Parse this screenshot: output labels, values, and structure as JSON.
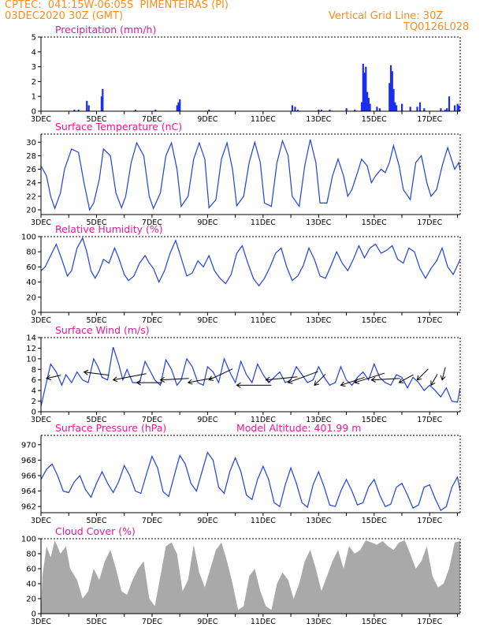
{
  "header": {
    "line1_left": "CPTEC:  041:15W-06:05S  PIMENTEIRAS (PI)",
    "line2_left": "03DEC2020 30Z (GMT)",
    "line2_right": "Vertical Grid Line: 30Z",
    "line3_right": "TQ0126L028"
  },
  "colors": {
    "header": "#ff8c1a",
    "title": "#e8179a",
    "line": "#1f3fe0",
    "bar": "#1a2ef0",
    "cloud": "#a9a9a9"
  },
  "x_axis": {
    "ticks": [
      "3DEC",
      "5DEC",
      "7DEC",
      "9DEC",
      "11DEC",
      "13DEC",
      "15DEC",
      "17DEC"
    ],
    "range_days": [
      3,
      18.1
    ]
  },
  "chart_data": [
    {
      "type": "bar",
      "title": "Precipitation (mm/h)",
      "ylim": [
        0,
        5
      ],
      "yticks": [
        0,
        1,
        2,
        3,
        4,
        5
      ],
      "x": [
        4.2,
        4.35,
        4.65,
        4.72,
        5.18,
        5.22,
        6.4,
        7.12,
        7.9,
        7.95,
        8.0,
        9.05,
        12.05,
        12.15,
        12.25,
        13.0,
        13.1,
        13.4,
        14.0,
        14.3,
        14.55,
        14.6,
        14.65,
        14.7,
        14.75,
        14.8,
        14.85,
        15.1,
        15.2,
        15.55,
        15.6,
        15.65,
        15.7,
        15.75,
        15.8,
        16.0,
        16.3,
        16.55,
        16.65,
        16.8,
        17.4,
        17.55,
        17.62,
        17.7,
        17.9,
        18.0,
        18.05
      ],
      "values": [
        0.1,
        0.1,
        0.7,
        0.4,
        1.0,
        1.5,
        0.1,
        0.1,
        0.4,
        0.6,
        0.8,
        0.1,
        0.4,
        0.3,
        0.1,
        0.1,
        0.1,
        0.1,
        0.2,
        0.1,
        0.6,
        3.2,
        2.6,
        3.0,
        1.3,
        0.9,
        0.5,
        0.3,
        0.2,
        1.9,
        3.1,
        2.7,
        1.5,
        0.6,
        0.4,
        0.5,
        0.3,
        0.3,
        0.6,
        0.2,
        0.2,
        0.1,
        0.2,
        1.0,
        0.4,
        0.5,
        0.4
      ]
    },
    {
      "type": "line",
      "title": "Surface Temperature (nC)",
      "ylim": [
        19.3,
        31.2
      ],
      "yticks": [
        20,
        22,
        24,
        26,
        28,
        30
      ],
      "x": [
        3.0,
        3.2,
        3.35,
        3.5,
        3.7,
        3.85,
        4.1,
        4.35,
        4.55,
        4.75,
        4.9,
        5.1,
        5.25,
        5.5,
        5.7,
        5.9,
        6.05,
        6.25,
        6.45,
        6.7,
        6.9,
        7.05,
        7.3,
        7.5,
        7.7,
        7.9,
        8.05,
        8.3,
        8.5,
        8.7,
        8.9,
        9.05,
        9.3,
        9.5,
        9.7,
        9.9,
        10.05,
        10.3,
        10.5,
        10.7,
        10.9,
        11.05,
        11.3,
        11.5,
        11.7,
        11.9,
        12.05,
        12.3,
        12.5,
        12.7,
        12.9,
        13.05,
        13.3,
        13.5,
        13.7,
        13.9,
        14.05,
        14.2,
        14.4,
        14.55,
        14.75,
        14.9,
        15.05,
        15.25,
        15.4,
        15.55,
        15.7,
        15.9,
        16.05,
        16.3,
        16.5,
        16.7,
        16.9,
        17.05,
        17.25,
        17.45,
        17.65,
        17.9,
        18.05,
        18.1
      ],
      "values": [
        26.5,
        25.0,
        22.0,
        20.2,
        22.5,
        26.0,
        29.0,
        28.5,
        24.0,
        20.0,
        21.0,
        24.5,
        29.0,
        28.0,
        22.5,
        20.3,
        22.0,
        27.0,
        29.9,
        28.0,
        22.0,
        20.2,
        22.5,
        28.0,
        29.9,
        26.0,
        20.5,
        22.0,
        27.5,
        29.9,
        27.5,
        20.3,
        21.5,
        27.5,
        29.9,
        26.0,
        20.6,
        22.0,
        27.0,
        30.0,
        27.0,
        21.0,
        20.5,
        27.0,
        30.2,
        28.0,
        22.0,
        20.5,
        26.5,
        30.4,
        27.0,
        21.0,
        21.0,
        25.0,
        27.5,
        25.0,
        22.0,
        23.0,
        25.5,
        27.5,
        26.5,
        24.0,
        25.0,
        26.0,
        25.5,
        27.0,
        29.5,
        26.5,
        23.0,
        21.5,
        27.0,
        28.0,
        24.0,
        22.0,
        23.0,
        26.5,
        29.2,
        26.0,
        27.0,
        25.8
      ]
    },
    {
      "type": "line",
      "title": "Relative Humidity (%)",
      "ylim": [
        0,
        100
      ],
      "yticks": [
        0,
        20,
        40,
        60,
        80,
        100
      ],
      "x": [
        3.0,
        3.15,
        3.35,
        3.55,
        3.75,
        3.95,
        4.1,
        4.3,
        4.5,
        4.65,
        4.8,
        4.95,
        5.1,
        5.25,
        5.45,
        5.65,
        5.8,
        6.0,
        6.15,
        6.35,
        6.55,
        6.75,
        6.9,
        7.05,
        7.25,
        7.45,
        7.65,
        7.85,
        8.05,
        8.25,
        8.45,
        8.65,
        8.85,
        9.05,
        9.25,
        9.45,
        9.65,
        9.85,
        10.05,
        10.25,
        10.45,
        10.65,
        10.85,
        11.05,
        11.25,
        11.45,
        11.65,
        11.85,
        12.05,
        12.25,
        12.45,
        12.65,
        12.85,
        13.05,
        13.25,
        13.45,
        13.65,
        13.85,
        14.05,
        14.25,
        14.45,
        14.65,
        14.85,
        15.05,
        15.25,
        15.45,
        15.65,
        15.85,
        16.05,
        16.25,
        16.45,
        16.65,
        16.85,
        17.05,
        17.25,
        17.45,
        17.65,
        17.85,
        18.1
      ],
      "values": [
        55,
        60,
        75,
        90,
        70,
        48,
        55,
        85,
        98,
        80,
        55,
        45,
        55,
        70,
        65,
        85,
        72,
        50,
        42,
        48,
        65,
        75,
        65,
        58,
        40,
        55,
        78,
        95,
        72,
        48,
        52,
        68,
        60,
        75,
        55,
        45,
        38,
        50,
        78,
        88,
        65,
        45,
        35,
        45,
        60,
        78,
        85,
        60,
        42,
        48,
        62,
        85,
        70,
        48,
        45,
        62,
        80,
        65,
        55,
        70,
        88,
        72,
        85,
        90,
        78,
        82,
        88,
        70,
        65,
        85,
        80,
        58,
        45,
        58,
        68,
        85,
        60,
        50,
        70
      ]
    },
    {
      "type": "line",
      "title": "Surface Wind (m/s)",
      "ylim": [
        0,
        14
      ],
      "yticks": [
        0,
        2,
        4,
        6,
        8,
        10,
        12,
        14
      ],
      "x": [
        3.0,
        3.15,
        3.35,
        3.55,
        3.75,
        3.9,
        4.1,
        4.3,
        4.5,
        4.7,
        4.9,
        5.05,
        5.2,
        5.4,
        5.6,
        5.8,
        5.95,
        6.1,
        6.3,
        6.55,
        6.75,
        6.95,
        7.1,
        7.3,
        7.5,
        7.7,
        7.9,
        8.05,
        8.25,
        8.45,
        8.65,
        8.85,
        9.0,
        9.2,
        9.4,
        9.6,
        9.8,
        10.0,
        10.2,
        10.4,
        10.6,
        10.8,
        11.0,
        11.2,
        11.4,
        11.6,
        11.8,
        12.0,
        12.2,
        12.4,
        12.6,
        12.8,
        13.0,
        13.2,
        13.4,
        13.6,
        13.8,
        14.0,
        14.2,
        14.4,
        14.6,
        14.8,
        15.0,
        15.2,
        15.4,
        15.6,
        15.8,
        16.0,
        16.2,
        16.4,
        16.6,
        16.8,
        17.0,
        17.2,
        17.4,
        17.6,
        17.8,
        18.0,
        18.1
      ],
      "values": [
        1.0,
        4.5,
        9.0,
        7.5,
        5.0,
        7.0,
        5.5,
        7.5,
        6.0,
        5.5,
        10.0,
        8.5,
        6.5,
        6.0,
        12.2,
        9.0,
        6.0,
        8.0,
        5.5,
        5.5,
        9.5,
        7.5,
        6.0,
        5.0,
        9.8,
        8.0,
        5.0,
        6.0,
        10.0,
        8.5,
        5.5,
        5.0,
        8.5,
        7.5,
        5.5,
        10.0,
        7.5,
        5.5,
        9.5,
        7.0,
        5.5,
        9.0,
        7.0,
        5.5,
        6.5,
        7.5,
        5.5,
        6.0,
        8.5,
        7.0,
        5.5,
        6.0,
        8.5,
        6.5,
        5.0,
        5.5,
        8.5,
        6.0,
        5.0,
        6.5,
        7.5,
        6.0,
        9.0,
        6.5,
        5.5,
        5.0,
        7.0,
        6.5,
        4.5,
        6.5,
        5.5,
        4.0,
        5.0,
        4.0,
        2.8,
        4.5,
        2.0,
        1.8,
        4.5
      ]
    },
    {
      "type": "line",
      "title": "Surface Pressure (hPa)",
      "subtitle": "Model Altitude: 401.99 m",
      "ylim": [
        961.2,
        971.2
      ],
      "yticks": [
        962,
        964,
        966,
        968,
        970
      ],
      "x": [
        3.0,
        3.2,
        3.4,
        3.6,
        3.8,
        4.0,
        4.2,
        4.4,
        4.6,
        4.8,
        5.0,
        5.2,
        5.4,
        5.6,
        5.8,
        6.0,
        6.2,
        6.4,
        6.6,
        6.8,
        7.0,
        7.2,
        7.4,
        7.6,
        7.8,
        8.0,
        8.2,
        8.4,
        8.6,
        8.8,
        9.0,
        9.2,
        9.4,
        9.6,
        9.8,
        10.0,
        10.2,
        10.4,
        10.6,
        10.8,
        11.0,
        11.2,
        11.4,
        11.6,
        11.8,
        12.0,
        12.2,
        12.4,
        12.6,
        12.8,
        13.0,
        13.2,
        13.4,
        13.6,
        13.8,
        14.0,
        14.2,
        14.4,
        14.6,
        14.8,
        15.0,
        15.2,
        15.4,
        15.6,
        15.8,
        16.0,
        16.2,
        16.4,
        16.6,
        16.8,
        17.0,
        17.2,
        17.4,
        17.6,
        17.8,
        18.0,
        18.1
      ],
      "values": [
        965.5,
        966.8,
        967.5,
        966.0,
        964.0,
        963.8,
        965.2,
        966.0,
        964.2,
        963.2,
        965.0,
        966.5,
        965.0,
        963.8,
        965.2,
        967.3,
        966.0,
        964.0,
        963.7,
        966.2,
        968.5,
        967.0,
        963.9,
        963.3,
        966.0,
        968.6,
        967.5,
        965.0,
        964.0,
        966.5,
        969.0,
        968.0,
        964.5,
        963.7,
        966.5,
        968.3,
        966.5,
        963.5,
        962.9,
        965.5,
        967.2,
        965.5,
        962.5,
        962.0,
        964.8,
        967.0,
        965.0,
        962.5,
        961.9,
        964.8,
        966.5,
        964.5,
        962.2,
        962.0,
        964.0,
        965.5,
        964.0,
        962.2,
        962.5,
        964.5,
        965.5,
        963.5,
        962.0,
        962.3,
        964.5,
        965.0,
        963.5,
        961.8,
        962.2,
        964.5,
        964.8,
        963.0,
        961.5,
        962.0,
        964.5,
        965.8,
        964.0
      ]
    },
    {
      "type": "area",
      "title": "Cloud Cover (%)",
      "ylim": [
        0,
        100
      ],
      "yticks": [
        0,
        20,
        40,
        60,
        80,
        100
      ],
      "x": [
        3.0,
        3.05,
        3.2,
        3.35,
        3.5,
        3.7,
        3.9,
        4.05,
        4.3,
        4.5,
        4.7,
        4.9,
        5.1,
        5.3,
        5.5,
        5.7,
        5.9,
        6.1,
        6.3,
        6.5,
        6.7,
        6.9,
        7.1,
        7.3,
        7.5,
        7.7,
        7.9,
        8.1,
        8.3,
        8.5,
        8.7,
        8.9,
        9.1,
        9.3,
        9.5,
        9.7,
        9.9,
        10.1,
        10.3,
        10.5,
        10.7,
        10.9,
        11.1,
        11.3,
        11.5,
        11.7,
        11.9,
        12.1,
        12.3,
        12.5,
        12.7,
        12.9,
        13.1,
        13.3,
        13.5,
        13.7,
        13.9,
        14.1,
        14.3,
        14.5,
        14.7,
        14.9,
        15.1,
        15.3,
        15.5,
        15.7,
        15.9,
        16.1,
        16.3,
        16.5,
        16.7,
        16.9,
        17.1,
        17.3,
        17.5,
        17.7,
        17.9,
        18.1
      ],
      "values": [
        0,
        50,
        90,
        75,
        98,
        80,
        90,
        60,
        45,
        20,
        30,
        60,
        45,
        70,
        85,
        60,
        30,
        25,
        45,
        60,
        70,
        20,
        10,
        50,
        90,
        95,
        80,
        30,
        45,
        92,
        55,
        35,
        60,
        85,
        95,
        70,
        40,
        5,
        10,
        50,
        60,
        30,
        10,
        5,
        40,
        55,
        45,
        20,
        40,
        70,
        85,
        60,
        30,
        50,
        70,
        85,
        60,
        90,
        80,
        85,
        98,
        95,
        92,
        97,
        90,
        85,
        95,
        98,
        80,
        60,
        70,
        90,
        50,
        35,
        40,
        60,
        95,
        97
      ]
    }
  ],
  "wind_vectors": {
    "x": [
      3.2,
      4.55,
      5.6,
      6.45,
      7.3,
      8.3,
      9.05,
      10.05,
      11.1,
      11.9,
      12.85,
      13.8,
      14.3,
      14.9,
      15.9,
      16.55,
      17.05,
      17.45
    ],
    "y": [
      6.3,
      7.5,
      6.0,
      5.5,
      6.0,
      5.5,
      6.0,
      5.0,
      6.0,
      5.5,
      5.0,
      5.0,
      5.5,
      6.0,
      5.5,
      6.0,
      5.0,
      6.0
    ],
    "dx": [
      18,
      32,
      42,
      32,
      36,
      32,
      30,
      44,
      40,
      38,
      14,
      30,
      38,
      36,
      18,
      14,
      8,
      4
    ],
    "dy": [
      -4,
      4,
      -8,
      0,
      -2,
      -6,
      -14,
      0,
      -4,
      -14,
      -14,
      -10,
      -12,
      -2,
      -10,
      -14,
      -14,
      -16
    ]
  }
}
